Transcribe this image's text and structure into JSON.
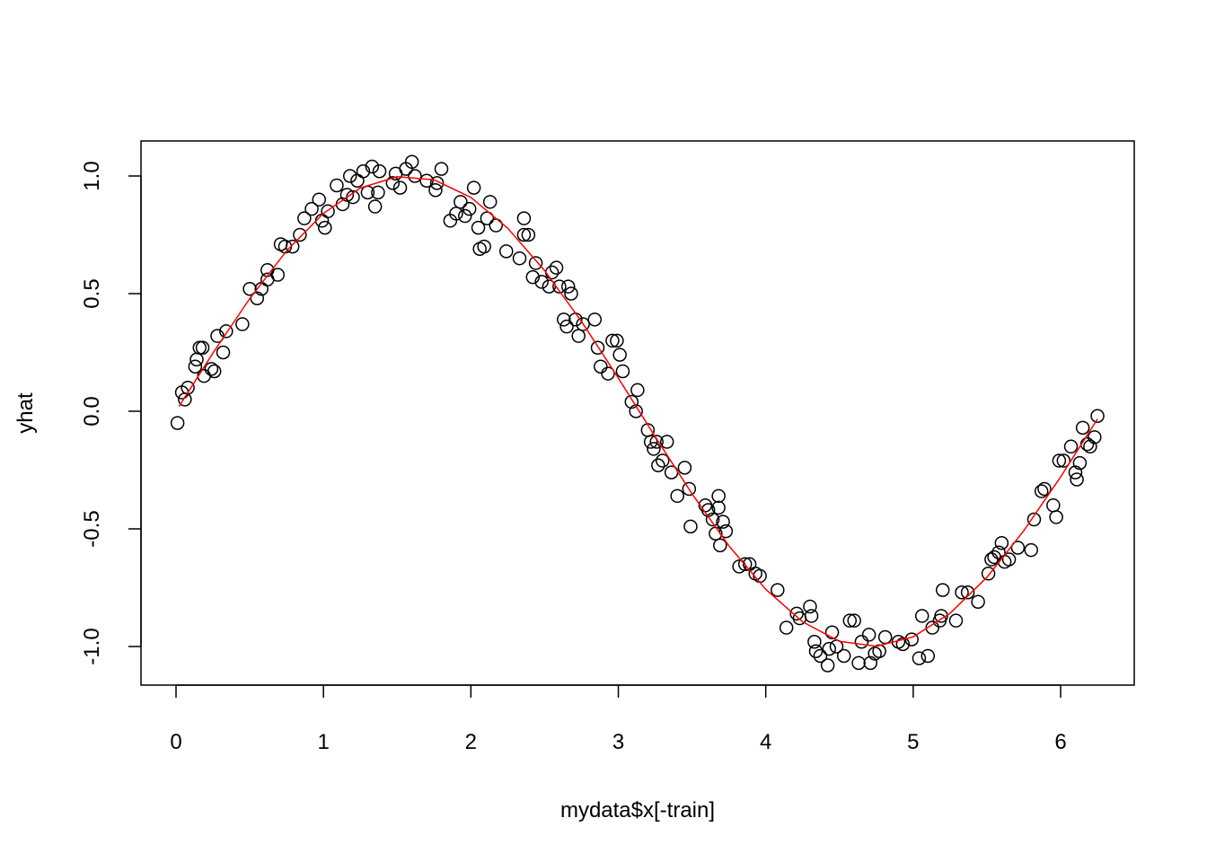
{
  "chart_data": {
    "type": "scatter",
    "title": "",
    "xlabel": "mydata$x[-train]",
    "ylabel": "yhat",
    "xlim": [
      -0.24,
      6.49
    ],
    "ylim": [
      -1.15,
      1.15
    ],
    "grid": false,
    "x_ticks": [
      0,
      1,
      2,
      3,
      4,
      5,
      6
    ],
    "x_tick_labels": [
      "0",
      "1",
      "2",
      "3",
      "4",
      "5",
      "6"
    ],
    "y_ticks": [
      -1.0,
      -0.5,
      0.0,
      0.5,
      1.0
    ],
    "y_tick_labels": [
      "-1.0",
      "-0.5",
      "0.0",
      "0.5",
      "1.0"
    ],
    "colors": {
      "points": "#000000",
      "curve": "#ff0000"
    },
    "points": [
      [
        0.01,
        -0.05
      ],
      [
        0.04,
        0.08
      ],
      [
        0.06,
        0.05
      ],
      [
        0.08,
        0.1
      ],
      [
        0.13,
        0.19
      ],
      [
        0.14,
        0.22
      ],
      [
        0.16,
        0.27
      ],
      [
        0.18,
        0.27
      ],
      [
        0.19,
        0.15
      ],
      [
        0.24,
        0.18
      ],
      [
        0.26,
        0.17
      ],
      [
        0.28,
        0.32
      ],
      [
        0.32,
        0.25
      ],
      [
        0.34,
        0.34
      ],
      [
        0.45,
        0.37
      ],
      [
        0.5,
        0.52
      ],
      [
        0.55,
        0.48
      ],
      [
        0.58,
        0.52
      ],
      [
        0.62,
        0.56
      ],
      [
        0.62,
        0.6
      ],
      [
        0.69,
        0.58
      ],
      [
        0.71,
        0.71
      ],
      [
        0.74,
        0.7
      ],
      [
        0.79,
        0.7
      ],
      [
        0.84,
        0.75
      ],
      [
        0.87,
        0.82
      ],
      [
        0.92,
        0.86
      ],
      [
        0.97,
        0.9
      ],
      [
        0.99,
        0.81
      ],
      [
        1.01,
        0.78
      ],
      [
        1.03,
        0.85
      ],
      [
        1.09,
        0.96
      ],
      [
        1.13,
        0.88
      ],
      [
        1.16,
        0.92
      ],
      [
        1.18,
        1.0
      ],
      [
        1.2,
        0.91
      ],
      [
        1.23,
        0.98
      ],
      [
        1.27,
        1.02
      ],
      [
        1.3,
        0.93
      ],
      [
        1.33,
        1.04
      ],
      [
        1.35,
        0.87
      ],
      [
        1.37,
        0.93
      ],
      [
        1.38,
        1.02
      ],
      [
        1.47,
        0.97
      ],
      [
        1.49,
        1.01
      ],
      [
        1.52,
        0.95
      ],
      [
        1.56,
        1.03
      ],
      [
        1.6,
        1.06
      ],
      [
        1.62,
        1.0
      ],
      [
        1.7,
        0.98
      ],
      [
        1.76,
        0.94
      ],
      [
        1.77,
        0.97
      ],
      [
        1.8,
        1.03
      ],
      [
        1.86,
        0.81
      ],
      [
        1.9,
        0.84
      ],
      [
        1.93,
        0.89
      ],
      [
        1.96,
        0.83
      ],
      [
        1.99,
        0.86
      ],
      [
        2.02,
        0.95
      ],
      [
        2.05,
        0.78
      ],
      [
        2.06,
        0.69
      ],
      [
        2.09,
        0.7
      ],
      [
        2.11,
        0.82
      ],
      [
        2.13,
        0.89
      ],
      [
        2.17,
        0.79
      ],
      [
        2.24,
        0.68
      ],
      [
        2.33,
        0.65
      ],
      [
        2.36,
        0.82
      ],
      [
        2.36,
        0.75
      ],
      [
        2.39,
        0.75
      ],
      [
        2.42,
        0.57
      ],
      [
        2.44,
        0.63
      ],
      [
        2.48,
        0.55
      ],
      [
        2.53,
        0.53
      ],
      [
        2.55,
        0.59
      ],
      [
        2.58,
        0.61
      ],
      [
        2.6,
        0.53
      ],
      [
        2.63,
        0.39
      ],
      [
        2.66,
        0.53
      ],
      [
        2.68,
        0.5
      ],
      [
        2.65,
        0.36
      ],
      [
        2.71,
        0.39
      ],
      [
        2.73,
        0.32
      ],
      [
        2.76,
        0.37
      ],
      [
        2.84,
        0.39
      ],
      [
        2.86,
        0.27
      ],
      [
        2.88,
        0.19
      ],
      [
        2.93,
        0.16
      ],
      [
        2.96,
        0.3
      ],
      [
        2.99,
        0.3
      ],
      [
        3.01,
        0.24
      ],
      [
        3.03,
        0.17
      ],
      [
        3.09,
        0.04
      ],
      [
        3.12,
        0.0
      ],
      [
        3.13,
        0.09
      ],
      [
        3.2,
        -0.08
      ],
      [
        3.22,
        -0.13
      ],
      [
        3.24,
        -0.16
      ],
      [
        3.26,
        -0.13
      ],
      [
        3.27,
        -0.23
      ],
      [
        3.3,
        -0.21
      ],
      [
        3.33,
        -0.13
      ],
      [
        3.36,
        -0.26
      ],
      [
        3.4,
        -0.36
      ],
      [
        3.45,
        -0.24
      ],
      [
        3.48,
        -0.33
      ],
      [
        3.49,
        -0.49
      ],
      [
        3.59,
        -0.4
      ],
      [
        3.61,
        -0.42
      ],
      [
        3.64,
        -0.46
      ],
      [
        3.66,
        -0.52
      ],
      [
        3.68,
        -0.36
      ],
      [
        3.68,
        -0.41
      ],
      [
        3.69,
        -0.57
      ],
      [
        3.71,
        -0.47
      ],
      [
        3.73,
        -0.51
      ],
      [
        3.82,
        -0.66
      ],
      [
        3.86,
        -0.65
      ],
      [
        3.89,
        -0.65
      ],
      [
        3.93,
        -0.69
      ],
      [
        3.96,
        -0.7
      ],
      [
        4.08,
        -0.76
      ],
      [
        4.14,
        -0.92
      ],
      [
        4.21,
        -0.86
      ],
      [
        4.23,
        -0.88
      ],
      [
        4.3,
        -0.83
      ],
      [
        4.31,
        -0.87
      ],
      [
        4.33,
        -0.98
      ],
      [
        4.34,
        -1.02
      ],
      [
        4.37,
        -1.04
      ],
      [
        4.42,
        -1.08
      ],
      [
        4.43,
        -1.01
      ],
      [
        4.45,
        -0.94
      ],
      [
        4.48,
        -1.0
      ],
      [
        4.53,
        -1.04
      ],
      [
        4.57,
        -0.89
      ],
      [
        4.6,
        -0.89
      ],
      [
        4.63,
        -1.07
      ],
      [
        4.65,
        -0.98
      ],
      [
        4.7,
        -0.95
      ],
      [
        4.71,
        -1.07
      ],
      [
        4.74,
        -1.03
      ],
      [
        4.77,
        -1.02
      ],
      [
        4.81,
        -0.96
      ],
      [
        4.9,
        -0.98
      ],
      [
        4.93,
        -0.99
      ],
      [
        4.99,
        -0.97
      ],
      [
        5.04,
        -1.05
      ],
      [
        5.06,
        -0.87
      ],
      [
        5.1,
        -1.04
      ],
      [
        5.13,
        -0.92
      ],
      [
        5.18,
        -0.89
      ],
      [
        5.19,
        -0.87
      ],
      [
        5.2,
        -0.76
      ],
      [
        5.29,
        -0.89
      ],
      [
        5.33,
        -0.77
      ],
      [
        5.37,
        -0.77
      ],
      [
        5.44,
        -0.81
      ],
      [
        5.51,
        -0.69
      ],
      [
        5.53,
        -0.63
      ],
      [
        5.55,
        -0.62
      ],
      [
        5.58,
        -0.6
      ],
      [
        5.6,
        -0.56
      ],
      [
        5.62,
        -0.64
      ],
      [
        5.65,
        -0.63
      ],
      [
        5.71,
        -0.58
      ],
      [
        5.8,
        -0.59
      ],
      [
        5.82,
        -0.46
      ],
      [
        5.87,
        -0.34
      ],
      [
        5.89,
        -0.33
      ],
      [
        5.95,
        -0.4
      ],
      [
        5.97,
        -0.45
      ],
      [
        5.99,
        -0.21
      ],
      [
        6.02,
        -0.21
      ],
      [
        6.07,
        -0.15
      ],
      [
        6.1,
        -0.26
      ],
      [
        6.11,
        -0.29
      ],
      [
        6.13,
        -0.22
      ],
      [
        6.15,
        -0.07
      ],
      [
        6.18,
        -0.14
      ],
      [
        6.2,
        -0.15
      ],
      [
        6.23,
        -0.11
      ],
      [
        6.25,
        -0.02
      ]
    ],
    "curve": {
      "x": [
        0.02,
        0.25,
        0.5,
        0.75,
        1.0,
        1.25,
        1.5,
        1.75,
        2.0,
        2.25,
        2.5,
        2.75,
        3.0,
        3.25,
        3.5,
        3.75,
        4.0,
        4.25,
        4.5,
        4.75,
        5.0,
        5.25,
        5.5,
        5.75,
        6.0,
        6.25
      ],
      "y": [
        0.02,
        0.247,
        0.479,
        0.682,
        0.841,
        0.949,
        0.997,
        0.984,
        0.909,
        0.778,
        0.598,
        0.382,
        0.141,
        -0.108,
        -0.351,
        -0.572,
        -0.757,
        -0.895,
        -0.978,
        -0.999,
        -0.959,
        -0.859,
        -0.706,
        -0.508,
        -0.279,
        -0.033
      ]
    }
  }
}
